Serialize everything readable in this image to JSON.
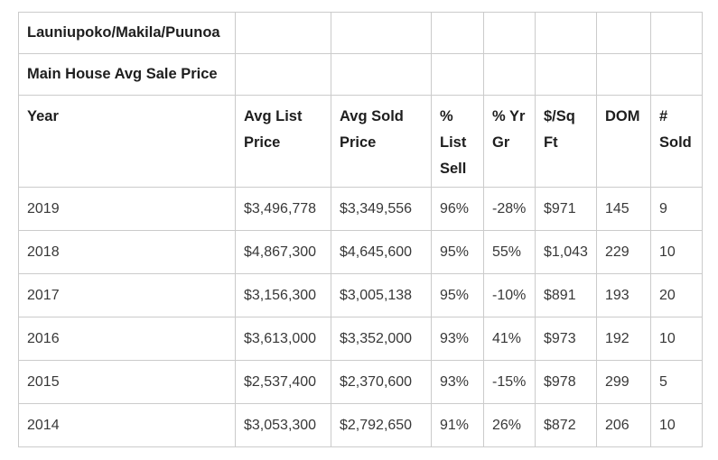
{
  "colors": {
    "border": "#cbcbcb",
    "header_text": "#1e1e1e",
    "body_text": "#383838",
    "background": "#ffffff"
  },
  "table": {
    "title1": "Launiupoko/Makila/Puunoa",
    "title2": "Main House Avg Sale Price",
    "columns": [
      "Year",
      "Avg List Price",
      "Avg Sold Price",
      "% List Sell",
      "% Yr Gr",
      "$/Sq Ft",
      "DOM",
      "# Sold"
    ],
    "rows": [
      [
        "2019",
        "$3,496,778",
        "$3,349,556",
        "96%",
        "-28%",
        "$971",
        "145",
        "9"
      ],
      [
        "2018",
        "$4,867,300",
        "$4,645,600",
        "95%",
        "55%",
        "$1,043",
        "229",
        "10"
      ],
      [
        "2017",
        "$3,156,300",
        "$3,005,138",
        "95%",
        "-10%",
        "$891",
        "193",
        "20"
      ],
      [
        "2016",
        "$3,613,000",
        "$3,352,000",
        "93%",
        "41%",
        "$973",
        "192",
        "10"
      ],
      [
        "2015",
        "$2,537,400",
        "$2,370,600",
        "93%",
        "-15%",
        "$978",
        "299",
        "5"
      ],
      [
        "2014",
        "$3,053,300",
        "$2,792,650",
        "91%",
        "26%",
        "$872",
        "206",
        "10"
      ]
    ]
  },
  "chart_data": {
    "type": "table",
    "title": "Launiupoko/Makila/Puunoa — Main House Avg Sale Price",
    "columns": [
      "Year",
      "Avg List Price",
      "Avg Sold Price",
      "% List Sell",
      "% Yr Gr",
      "$/Sq Ft",
      "DOM",
      "# Sold"
    ],
    "years": [
      2019,
      2018,
      2017,
      2016,
      2015,
      2014
    ],
    "series": [
      {
        "name": "Avg List Price",
        "values": [
          3496778,
          4867300,
          3156300,
          3613000,
          2537400,
          3053300
        ]
      },
      {
        "name": "Avg Sold Price",
        "values": [
          3349556,
          4645600,
          3005138,
          3352000,
          2370600,
          2792650
        ]
      },
      {
        "name": "% List Sell",
        "values": [
          96,
          95,
          95,
          93,
          93,
          91
        ]
      },
      {
        "name": "% Yr Gr",
        "values": [
          -28,
          55,
          -10,
          41,
          -15,
          26
        ]
      },
      {
        "name": "$/Sq Ft",
        "values": [
          971,
          1043,
          891,
          973,
          978,
          872
        ]
      },
      {
        "name": "DOM",
        "values": [
          145,
          229,
          193,
          192,
          299,
          206
        ]
      },
      {
        "name": "# Sold",
        "values": [
          9,
          10,
          20,
          10,
          5,
          10
        ]
      }
    ]
  }
}
